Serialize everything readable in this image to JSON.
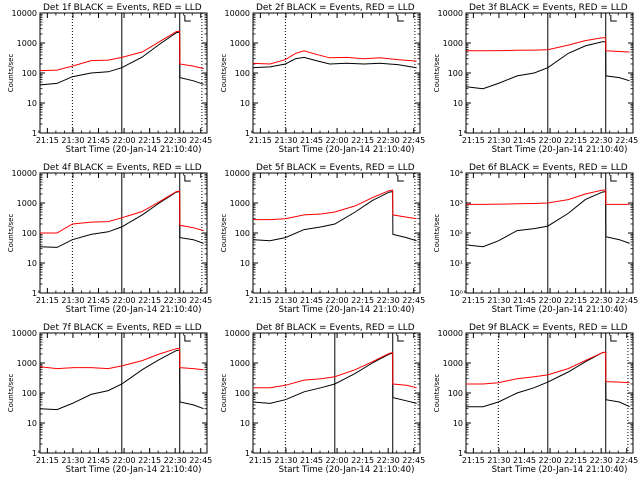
{
  "figure": {
    "time_ticks": [
      "21:15",
      "21:30",
      "21:45",
      "22:00",
      "22:15",
      "22:30",
      "22:45"
    ],
    "xlabel": "Start Time (20-Jan-14 21:10:40)",
    "ylabel": "Counts/sec",
    "y_ticks_decimal": [
      "1",
      "10",
      "100",
      "1000",
      "10000"
    ],
    "y_ticks_power": [
      "10⁰",
      "10¹",
      "10²",
      "10³",
      "10⁴"
    ],
    "colors": {
      "events": "#000000",
      "lld": "#ff0000",
      "background": "#ffffff"
    }
  },
  "chart_data": [
    {
      "type": "line",
      "title": "Det 1f BLACK = Events, RED = LLD",
      "x_unit": "minutes after 21:10:40",
      "xlim": [
        0,
        98
      ],
      "ylim": [
        1,
        10000
      ],
      "yscale": "log",
      "vlines": [
        {
          "x": 19,
          "style": "dotted"
        },
        {
          "x": 48,
          "style": "solid"
        },
        {
          "x": 82,
          "style": "solid"
        },
        {
          "x": 95,
          "style": "dotted"
        }
      ],
      "series": [
        {
          "name": "Events",
          "x": [
            0,
            10,
            19,
            30,
            40,
            48,
            60,
            70,
            80,
            81.9,
            82.1,
            90,
            96
          ],
          "y": [
            40,
            45,
            75,
            100,
            110,
            150,
            340,
            900,
            2200,
            2300,
            70,
            55,
            42
          ]
        },
        {
          "name": "LLD",
          "x": [
            0,
            10,
            19,
            30,
            40,
            48,
            60,
            70,
            80,
            81.9,
            82.1,
            90,
            96
          ],
          "y": [
            120,
            125,
            170,
            260,
            270,
            330,
            500,
            1100,
            2400,
            2500,
            200,
            170,
            140
          ]
        }
      ]
    },
    {
      "type": "line",
      "title": "Det 2f BLACK = Events, RED = LLD",
      "x_unit": "minutes after 21:10:40",
      "xlim": [
        0,
        98
      ],
      "ylim": [
        1,
        10000
      ],
      "yscale": "log",
      "vlines": [
        {
          "x": 19,
          "style": "dotted"
        },
        {
          "x": 95,
          "style": "dotted"
        }
      ],
      "series": [
        {
          "name": "Events",
          "x": [
            0,
            10,
            19,
            25,
            30,
            37,
            45,
            55,
            65,
            75,
            85,
            96
          ],
          "y": [
            150,
            160,
            200,
            300,
            330,
            260,
            200,
            210,
            200,
            210,
            190,
            150
          ]
        },
        {
          "name": "LLD",
          "x": [
            0,
            10,
            19,
            25,
            30,
            37,
            45,
            55,
            65,
            75,
            85,
            96
          ],
          "y": [
            210,
            200,
            280,
            450,
            550,
            420,
            320,
            330,
            300,
            320,
            280,
            250
          ]
        }
      ]
    },
    {
      "type": "line",
      "title": "Det 3f BLACK = Events, RED = LLD",
      "x_unit": "minutes after 21:10:40",
      "xlim": [
        0,
        98
      ],
      "ylim": [
        1,
        10000
      ],
      "yscale": "log",
      "vlines": [
        {
          "x": 48,
          "style": "solid"
        },
        {
          "x": 82,
          "style": "solid"
        }
      ],
      "series": [
        {
          "name": "Events",
          "x": [
            0,
            10,
            19,
            30,
            40,
            48,
            60,
            70,
            80,
            81.9,
            82.1,
            90,
            96
          ],
          "y": [
            35,
            30,
            45,
            80,
            100,
            150,
            450,
            800,
            1100,
            1100,
            80,
            70,
            55
          ]
        },
        {
          "name": "LLD",
          "x": [
            0,
            10,
            20,
            30,
            40,
            48,
            60,
            70,
            80,
            81.9,
            82.1,
            90,
            96
          ],
          "y": [
            550,
            550,
            560,
            570,
            580,
            600,
            850,
            1200,
            1500,
            1500,
            550,
            520,
            500
          ]
        }
      ]
    },
    {
      "type": "line",
      "title": "Det 4f BLACK = Events, RED = LLD",
      "x_unit": "minutes after 21:10:40",
      "xlim": [
        0,
        98
      ],
      "ylim": [
        1,
        10000
      ],
      "yscale": "log",
      "vlines": [
        {
          "x": 19,
          "style": "dotted"
        },
        {
          "x": 48,
          "style": "solid"
        },
        {
          "x": 82,
          "style": "solid"
        },
        {
          "x": 95,
          "style": "dotted"
        }
      ],
      "series": [
        {
          "name": "Events",
          "x": [
            0,
            10,
            19,
            30,
            40,
            48,
            60,
            70,
            80,
            81.9,
            82.1,
            90,
            96
          ],
          "y": [
            35,
            33,
            60,
            90,
            110,
            160,
            400,
            1000,
            2300,
            2400,
            70,
            60,
            45
          ]
        },
        {
          "name": "LLD",
          "x": [
            0,
            10,
            19,
            30,
            40,
            48,
            60,
            70,
            80,
            81.9,
            82.1,
            90,
            96
          ],
          "y": [
            100,
            100,
            200,
            230,
            240,
            320,
            520,
            1100,
            2400,
            2500,
            180,
            150,
            120
          ]
        }
      ]
    },
    {
      "type": "line",
      "title": "Det 5f BLACK = Events, RED = LLD",
      "x_unit": "minutes after 21:10:40",
      "xlim": [
        0,
        98
      ],
      "ylim": [
        1,
        10000
      ],
      "yscale": "log",
      "vlines": [
        {
          "x": 19,
          "style": "dotted"
        },
        {
          "x": 95,
          "style": "dotted"
        }
      ],
      "series": [
        {
          "name": "Events",
          "x": [
            0,
            10,
            19,
            30,
            40,
            48,
            60,
            70,
            80,
            81.9,
            82.1,
            90,
            96
          ],
          "y": [
            60,
            55,
            70,
            130,
            160,
            200,
            500,
            1200,
            2300,
            2400,
            90,
            70,
            55
          ]
        },
        {
          "name": "LLD",
          "x": [
            0,
            10,
            19,
            30,
            40,
            48,
            60,
            70,
            80,
            81.9,
            82.1,
            90,
            96
          ],
          "y": [
            280,
            280,
            300,
            400,
            430,
            500,
            800,
            1500,
            2600,
            2700,
            400,
            340,
            300
          ]
        }
      ]
    },
    {
      "type": "line",
      "title": "Det 6f BLACK = Events, RED = LLD",
      "x_unit": "minutes after 21:10:40",
      "xlim": [
        0,
        98
      ],
      "ylim": [
        1,
        10000
      ],
      "yscale": "log",
      "vlines": [
        {
          "x": 48,
          "style": "solid"
        },
        {
          "x": 82,
          "style": "solid"
        }
      ],
      "series": [
        {
          "name": "Events",
          "x": [
            0,
            10,
            19,
            30,
            40,
            48,
            60,
            70,
            80,
            81.9,
            82.1,
            90,
            96
          ],
          "y": [
            40,
            35,
            55,
            120,
            140,
            170,
            450,
            1300,
            2300,
            2400,
            75,
            60,
            45
          ]
        },
        {
          "name": "LLD",
          "x": [
            0,
            10,
            20,
            30,
            40,
            48,
            60,
            70,
            80,
            81.9,
            82.1,
            90,
            96
          ],
          "y": [
            900,
            900,
            920,
            940,
            960,
            1000,
            1300,
            2000,
            2700,
            2700,
            900,
            900,
            900
          ]
        }
      ]
    },
    {
      "type": "line",
      "title": "Det 7f BLACK = Events, RED = LLD",
      "x_unit": "minutes after 21:10:40",
      "xlim": [
        0,
        98
      ],
      "ylim": [
        1,
        10000
      ],
      "yscale": "log",
      "vlines": [
        {
          "x": 48,
          "style": "solid"
        },
        {
          "x": 82,
          "style": "solid"
        }
      ],
      "series": [
        {
          "name": "Events",
          "x": [
            0,
            10,
            19,
            30,
            40,
            48,
            60,
            70,
            80,
            81.9,
            82.1,
            90,
            96
          ],
          "y": [
            30,
            28,
            45,
            90,
            120,
            200,
            600,
            1300,
            2600,
            2700,
            50,
            40,
            30
          ]
        },
        {
          "name": "LLD",
          "x": [
            0,
            10,
            20,
            30,
            40,
            48,
            60,
            70,
            80,
            81.9,
            82.1,
            90,
            96
          ],
          "y": [
            750,
            650,
            700,
            700,
            650,
            800,
            1200,
            2000,
            3000,
            3100,
            700,
            650,
            600
          ]
        }
      ]
    },
    {
      "type": "line",
      "title": "Det 8f BLACK = Events, RED = LLD",
      "x_unit": "minutes after 21:10:40",
      "xlim": [
        0,
        98
      ],
      "ylim": [
        1,
        10000
      ],
      "yscale": "log",
      "vlines": [
        {
          "x": 19,
          "style": "dotted"
        },
        {
          "x": 48,
          "style": "solid"
        },
        {
          "x": 82,
          "style": "solid"
        },
        {
          "x": 95,
          "style": "dotted"
        }
      ],
      "series": [
        {
          "name": "Events",
          "x": [
            0,
            10,
            19,
            30,
            40,
            48,
            60,
            70,
            80,
            81.9,
            82.1,
            90,
            96
          ],
          "y": [
            50,
            45,
            60,
            110,
            150,
            200,
            450,
            1000,
            2000,
            2100,
            70,
            55,
            45
          ]
        },
        {
          "name": "LLD",
          "x": [
            0,
            10,
            19,
            30,
            40,
            48,
            60,
            70,
            80,
            81.9,
            82.1,
            90,
            96
          ],
          "y": [
            150,
            150,
            180,
            270,
            300,
            350,
            600,
            1100,
            2100,
            2200,
            200,
            180,
            150
          ]
        }
      ]
    },
    {
      "type": "line",
      "title": "Det 9f BLACK = Events, RED = LLD",
      "x_unit": "minutes after 21:10:40",
      "xlim": [
        0,
        98
      ],
      "ylim": [
        1,
        10000
      ],
      "yscale": "log",
      "vlines": [
        {
          "x": 19,
          "style": "dotted"
        },
        {
          "x": 48,
          "style": "solid"
        },
        {
          "x": 82,
          "style": "solid"
        },
        {
          "x": 95,
          "style": "dotted"
        }
      ],
      "series": [
        {
          "name": "Events",
          "x": [
            0,
            10,
            19,
            30,
            40,
            48,
            60,
            70,
            80,
            81.9,
            82.1,
            90,
            96
          ],
          "y": [
            35,
            35,
            50,
            100,
            150,
            230,
            500,
            1100,
            2200,
            2300,
            60,
            50,
            35
          ]
        },
        {
          "name": "LLD",
          "x": [
            0,
            10,
            19,
            30,
            40,
            48,
            60,
            70,
            80,
            81.9,
            82.1,
            90,
            96
          ],
          "y": [
            200,
            200,
            220,
            300,
            350,
            400,
            650,
            1200,
            2200,
            2300,
            240,
            230,
            220
          ]
        }
      ]
    }
  ]
}
